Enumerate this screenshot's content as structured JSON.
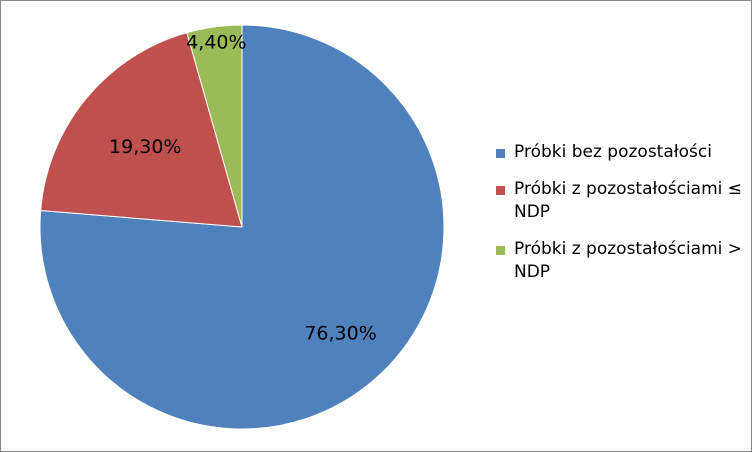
{
  "chart_data": {
    "type": "pie",
    "title": "",
    "labels": [
      "Próbki bez pozostałości",
      "Próbki z pozostałościami ≤ NDP",
      "Próbki z pozostałościami > NDP"
    ],
    "values": [
      76.3,
      19.3,
      4.4
    ],
    "value_labels": [
      "76,30%",
      "19,30%",
      "4,40%"
    ],
    "colors": [
      "#4F81BD",
      "#C0504D",
      "#9BBB59"
    ],
    "start": "12 o'clock",
    "direction": "clockwise",
    "legend_position": "right"
  }
}
